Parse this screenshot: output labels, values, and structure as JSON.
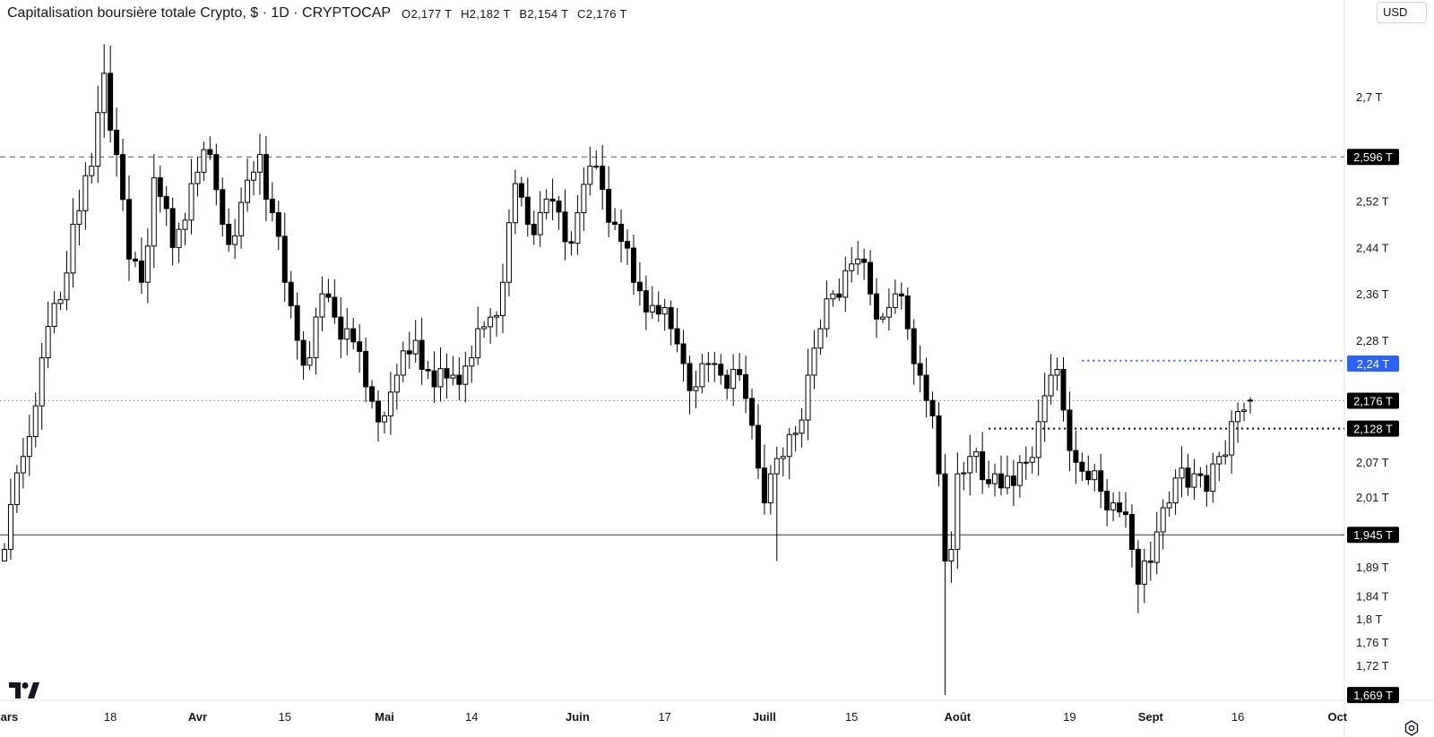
{
  "header": {
    "title": "Capitalisation boursière totale Crypto, $ · 1D · CRYPTOCAP",
    "open": "O2,177 T",
    "high": "H2,182 T",
    "low": "B2,154 T",
    "close": "C2,176 T"
  },
  "currency": "USD",
  "colors": {
    "up": "#ffffff",
    "down": "#000000",
    "outline": "#000000",
    "blue": "#2962ff",
    "grid": "none"
  },
  "chart_data": {
    "type": "candlestick",
    "title": "Capitalisation boursière totale Crypto",
    "unit": "T",
    "ylim": [
      1.66,
      2.82
    ],
    "y_ticks": [
      {
        "value": 2.7,
        "label": "2,7 T"
      },
      {
        "value": 2.52,
        "label": "2,52 T"
      },
      {
        "value": 2.44,
        "label": "2,44 T"
      },
      {
        "value": 2.36,
        "label": "2,36 T"
      },
      {
        "value": 2.28,
        "label": "2,28 T"
      },
      {
        "value": 2.07,
        "label": "2,07 T"
      },
      {
        "value": 2.01,
        "label": "2,01 T"
      },
      {
        "value": 1.89,
        "label": "1,89 T"
      },
      {
        "value": 1.84,
        "label": "1,84 T"
      },
      {
        "value": 1.8,
        "label": "1,8 T"
      },
      {
        "value": 1.76,
        "label": "1,76 T"
      },
      {
        "value": 1.72,
        "label": "1,72 T"
      }
    ],
    "x_ticks": [
      "Mars",
      "18",
      "Avr",
      "15",
      "Mai",
      "14",
      "Juin",
      "17",
      "Juill",
      "15",
      "Août",
      "19",
      "Sept",
      "16",
      "Oct"
    ],
    "x_tick_index": [
      0,
      17,
      31,
      45,
      61,
      75,
      92,
      106,
      122,
      136,
      153,
      171,
      184,
      198,
      214
    ],
    "price_tags": [
      {
        "value": 2.596,
        "label": "2,596 T",
        "style": "dark"
      },
      {
        "value": 2.24,
        "label": "2,24 T",
        "style": "blue"
      },
      {
        "value": 2.176,
        "label": "2,176 T",
        "style": "dark"
      },
      {
        "value": 2.128,
        "label": "2,128 T",
        "style": "dark"
      },
      {
        "value": 1.945,
        "label": "1,945 T",
        "style": "dark"
      },
      {
        "value": 1.669,
        "label": "1,669 T",
        "style": "dark"
      }
    ],
    "horizontal_lines": [
      {
        "value": 2.596,
        "style": "dashed",
        "color": "#555555"
      },
      {
        "value": 1.945,
        "style": "solid",
        "color": "#333333"
      },
      {
        "value": 2.176,
        "style": "dotted",
        "color": "#888888"
      }
    ],
    "segments": [
      {
        "value": 2.245,
        "from_index": 173,
        "color": "#2962ff",
        "style": "dotted"
      },
      {
        "value": 2.128,
        "from_index": 158,
        "color": "#000000",
        "style": "dotted"
      }
    ],
    "anchors": [
      [
        0,
        1.92
      ],
      [
        3,
        2.08
      ],
      [
        6,
        2.25
      ],
      [
        9,
        2.35
      ],
      [
        11,
        2.48
      ],
      [
        14,
        2.58
      ],
      [
        16,
        2.74
      ],
      [
        18,
        2.6
      ],
      [
        20,
        2.42
      ],
      [
        22,
        2.38
      ],
      [
        24,
        2.56
      ],
      [
        27,
        2.44
      ],
      [
        30,
        2.55
      ],
      [
        33,
        2.6
      ],
      [
        35,
        2.48
      ],
      [
        37,
        2.46
      ],
      [
        41,
        2.6
      ],
      [
        43,
        2.5
      ],
      [
        45,
        2.38
      ],
      [
        47,
        2.28
      ],
      [
        49,
        2.25
      ],
      [
        51,
        2.36
      ],
      [
        53,
        2.32
      ],
      [
        55,
        2.3
      ],
      [
        58,
        2.2
      ],
      [
        61,
        2.15
      ],
      [
        63,
        2.22
      ],
      [
        66,
        2.28
      ],
      [
        69,
        2.2
      ],
      [
        72,
        2.22
      ],
      [
        75,
        2.25
      ],
      [
        78,
        2.32
      ],
      [
        80,
        2.38
      ],
      [
        82,
        2.55
      ],
      [
        84,
        2.48
      ],
      [
        86,
        2.5
      ],
      [
        88,
        2.52
      ],
      [
        90,
        2.45
      ],
      [
        92,
        2.5
      ],
      [
        94,
        2.58
      ],
      [
        96,
        2.54
      ],
      [
        98,
        2.48
      ],
      [
        101,
        2.38
      ],
      [
        104,
        2.34
      ],
      [
        107,
        2.3
      ],
      [
        109,
        2.24
      ],
      [
        111,
        2.2
      ],
      [
        113,
        2.24
      ],
      [
        115,
        2.22
      ],
      [
        117,
        2.23
      ],
      [
        119,
        2.18
      ],
      [
        121,
        2.06
      ],
      [
        122,
        2.0
      ],
      [
        123,
        2.05
      ],
      [
        125,
        2.08
      ],
      [
        127,
        2.12
      ],
      [
        129,
        2.22
      ],
      [
        131,
        2.3
      ],
      [
        133,
        2.36
      ],
      [
        135,
        2.4
      ],
      [
        137,
        2.42
      ],
      [
        139,
        2.36
      ],
      [
        141,
        2.32
      ],
      [
        143,
        2.36
      ],
      [
        145,
        2.3
      ],
      [
        147,
        2.22
      ],
      [
        149,
        2.15
      ],
      [
        150,
        2.05
      ],
      [
        151,
        1.9
      ],
      [
        152,
        1.92
      ],
      [
        153,
        2.05
      ],
      [
        155,
        2.08
      ],
      [
        157,
        2.04
      ],
      [
        159,
        2.05
      ],
      [
        162,
        2.03
      ],
      [
        164,
        2.07
      ],
      [
        166,
        2.14
      ],
      [
        168,
        2.22
      ],
      [
        169,
        2.23
      ],
      [
        170,
        2.16
      ],
      [
        172,
        2.07
      ],
      [
        174,
        2.04
      ],
      [
        176,
        2.02
      ],
      [
        178,
        2.0
      ],
      [
        180,
        1.98
      ],
      [
        181,
        1.92
      ],
      [
        182,
        1.86
      ],
      [
        183,
        1.9
      ],
      [
        185,
        1.95
      ],
      [
        187,
        2.0
      ],
      [
        189,
        2.06
      ],
      [
        191,
        2.05
      ],
      [
        193,
        2.02
      ],
      [
        195,
        2.08
      ],
      [
        197,
        2.14
      ],
      [
        199,
        2.16
      ],
      [
        200,
        2.176
      ]
    ],
    "last_candle": {
      "open": 2.177,
      "high": 2.182,
      "low": 2.154,
      "close": 2.176
    }
  }
}
